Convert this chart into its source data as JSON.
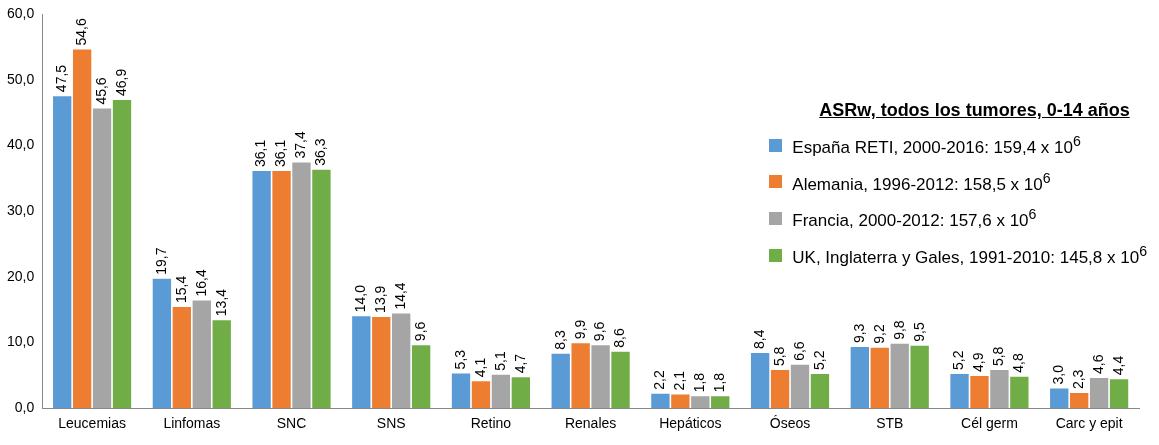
{
  "chart_data": {
    "type": "bar",
    "legend_title": "ASRw, todos los tumores, 0-14 años",
    "categories": [
      "Leucemias",
      "Linfomas",
      "SNC",
      "SNS",
      "Retino",
      "Renales",
      "Hepáticos",
      "Óseos",
      "STB",
      "Cél germ",
      "Carc y epit"
    ],
    "series": [
      {
        "name": "España RETI, 2000-2016: 159,4 x 10$^{6}$",
        "color": "#5b9bd5",
        "values": [
          47.5,
          19.7,
          36.1,
          14.0,
          5.3,
          8.3,
          2.2,
          8.4,
          9.3,
          5.2,
          3.0
        ],
        "value_labels": [
          "47,5",
          "19,7",
          "36,1",
          "14,0",
          "5,3",
          "8,3",
          "2,2",
          "8,4",
          "9,3",
          "5,2",
          "3,0"
        ]
      },
      {
        "name": "Alemania, 1996-2012: 158,5 x 10$^{6}$",
        "color": "#ed7d31",
        "values": [
          54.6,
          15.4,
          36.1,
          13.9,
          4.1,
          9.9,
          2.1,
          5.8,
          9.2,
          4.9,
          2.3
        ],
        "value_labels": [
          "54,6",
          "15,4",
          "36,1",
          "13,9",
          "4,1",
          "9,9",
          "2,1",
          "5,8",
          "9,2",
          "4,9",
          "2,3"
        ]
      },
      {
        "name": "Francia, 2000-2012: 157,6 x 10$^{6}$",
        "color": "#a5a5a5",
        "values": [
          45.6,
          16.4,
          37.4,
          14.4,
          5.1,
          9.6,
          1.8,
          6.6,
          9.8,
          5.8,
          4.6
        ],
        "value_labels": [
          "45,6",
          "16,4",
          "37,4",
          "14,4",
          "5,1",
          "9,6",
          "1,8",
          "6,6",
          "9,8",
          "5,8",
          "4,6"
        ]
      },
      {
        "name": "UK, Inglaterra y Gales, 1991-2010: 145,8 x 10$^{6}$",
        "color": "#70ad47",
        "values": [
          46.9,
          13.4,
          36.3,
          9.6,
          4.7,
          8.6,
          1.8,
          5.2,
          9.5,
          4.8,
          4.4
        ],
        "value_labels": [
          "46,9",
          "13,4",
          "36,3",
          "9,6",
          "4,7",
          "8,6",
          "1,8",
          "5,2",
          "9,5",
          "4,8",
          "4,4"
        ]
      }
    ],
    "ylim": [
      0,
      60
    ],
    "yticks": [
      {
        "value": 0,
        "label": "0,0"
      },
      {
        "value": 10,
        "label": "10,0"
      },
      {
        "value": 20,
        "label": "20,0"
      },
      {
        "value": 30,
        "label": "30,0"
      },
      {
        "value": 40,
        "label": "40,0"
      },
      {
        "value": 50,
        "label": "50,0"
      },
      {
        "value": 60,
        "label": "60,0"
      }
    ],
    "grid": false,
    "legend": "right"
  }
}
